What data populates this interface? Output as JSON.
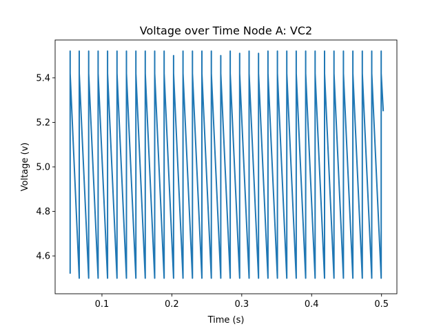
{
  "chart_data": {
    "type": "line",
    "title": "Voltage over Time Node A: VC2",
    "xlabel": "Time (s)",
    "ylabel": "Voltage (v)",
    "xlim": [
      0.033,
      0.522
    ],
    "ylim": [
      4.43,
      5.57
    ],
    "xticks": [
      0.1,
      0.2,
      0.3,
      0.4,
      0.5
    ],
    "xtick_labels": [
      "0.1",
      "0.2",
      "0.3",
      "0.4",
      "0.5"
    ],
    "yticks": [
      4.6,
      4.8,
      5.0,
      5.2,
      5.4
    ],
    "ytick_labels": [
      "4.6",
      "4.8",
      "5.0",
      "5.2",
      "5.4"
    ],
    "grid": false,
    "line_color": "#1f77b4",
    "series": [
      {
        "x": [
          0.0545,
          0.0545,
          0.0545,
          0.0675,
          0.0675,
          0.0675,
          0.081,
          0.081,
          0.081,
          0.0945,
          0.0945,
          0.0945,
          0.108,
          0.108,
          0.108,
          0.1215,
          0.1215,
          0.1215,
          0.135,
          0.135,
          0.135,
          0.1485,
          0.1485,
          0.1485,
          0.162,
          0.162,
          0.162,
          0.1755,
          0.1755,
          0.1755,
          0.189,
          0.189,
          0.189,
          0.2025,
          0.2025,
          0.2025,
          0.216,
          0.216,
          0.216,
          0.2295,
          0.2295,
          0.2295,
          0.243,
          0.243,
          0.243,
          0.2565,
          0.2565,
          0.2565,
          0.27,
          0.27,
          0.27,
          0.2835,
          0.2835,
          0.2835,
          0.297,
          0.297,
          0.297,
          0.3105,
          0.3105,
          0.3105,
          0.324,
          0.324,
          0.324,
          0.3375,
          0.3375,
          0.3375,
          0.351,
          0.351,
          0.351,
          0.3645,
          0.3645,
          0.3645,
          0.378,
          0.378,
          0.378,
          0.3915,
          0.3915,
          0.3915,
          0.405,
          0.405,
          0.405,
          0.4185,
          0.4185,
          0.4185,
          0.432,
          0.432,
          0.432,
          0.4455,
          0.4455,
          0.4455,
          0.459,
          0.459,
          0.459,
          0.4725,
          0.4725,
          0.4725,
          0.486,
          0.486,
          0.486,
          0.4995,
          0.4995,
          0.4995,
          0.5025
        ],
        "y": [
          4.52,
          5.52,
          5.42,
          4.5,
          5.52,
          5.42,
          4.5,
          5.52,
          5.42,
          4.5,
          5.52,
          5.42,
          4.5,
          5.52,
          5.42,
          4.5,
          5.52,
          5.42,
          4.5,
          5.52,
          5.42,
          4.5,
          5.52,
          5.42,
          4.5,
          5.52,
          5.42,
          4.5,
          5.52,
          5.42,
          4.5,
          5.52,
          5.42,
          4.5,
          5.5,
          5.42,
          4.5,
          5.52,
          5.42,
          4.5,
          5.52,
          5.42,
          4.5,
          5.52,
          5.42,
          4.5,
          5.52,
          5.42,
          4.5,
          5.5,
          5.42,
          4.5,
          5.52,
          5.42,
          4.5,
          5.51,
          5.42,
          4.5,
          5.52,
          5.42,
          4.5,
          5.51,
          5.42,
          4.5,
          5.52,
          5.42,
          4.5,
          5.52,
          5.42,
          4.5,
          5.52,
          5.42,
          4.5,
          5.52,
          5.42,
          4.5,
          5.52,
          5.42,
          4.5,
          5.52,
          5.42,
          4.5,
          5.52,
          5.42,
          4.5,
          5.52,
          5.42,
          4.5,
          5.52,
          5.42,
          4.5,
          5.52,
          5.42,
          4.5,
          5.52,
          5.42,
          4.5,
          5.52,
          5.42,
          4.5,
          5.52,
          5.42,
          5.25
        ]
      }
    ]
  }
}
